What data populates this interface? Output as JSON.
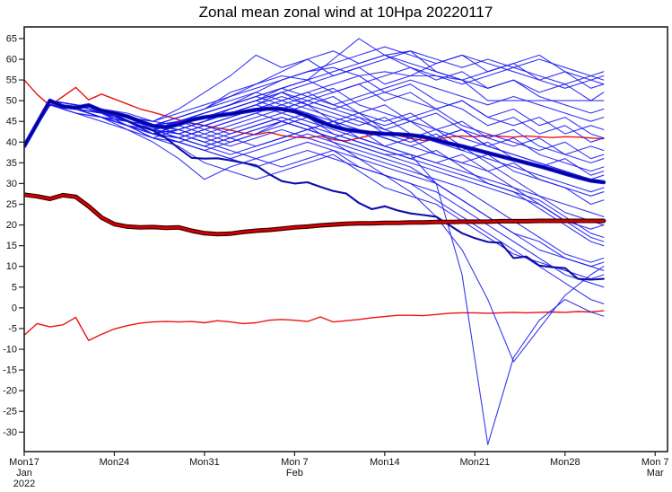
{
  "chart_data": {
    "type": "line",
    "title": "Zonal mean zonal wind at 10Hpa 20220117",
    "xlabel": "",
    "ylabel": "",
    "grid": false,
    "legend": "none",
    "x_axis": {
      "unit": "days since Mon 17 Jan 2022",
      "min": 0,
      "max": 49.96,
      "ticks": [
        {
          "day": 0,
          "lines": [
            "Mon17",
            "Jan",
            "2022"
          ]
        },
        {
          "day": 7,
          "lines": [
            "Mon24"
          ]
        },
        {
          "day": 14,
          "lines": [
            "Mon31"
          ]
        },
        {
          "day": 21,
          "lines": [
            "Mon 7",
            "Feb"
          ]
        },
        {
          "day": 28,
          "lines": [
            "Mon14"
          ]
        },
        {
          "day": 35,
          "lines": [
            "Mon21"
          ]
        },
        {
          "day": 42,
          "lines": [
            "Mon28"
          ]
        },
        {
          "day": 49,
          "lines": [
            "Mon 7",
            "Mar"
          ]
        }
      ]
    },
    "y_axis": {
      "min": -34.7,
      "max": 67.8,
      "tick_first": -30,
      "tick_last": 65,
      "tick_step": 5
    },
    "colors": {
      "member_blue": "#1a1af0",
      "mean_blue_edge": "#1414e6",
      "mean_blue_core": "#00008c",
      "control_blue": "#0d0da8",
      "red_thin": "#ee1111",
      "red_thick_core": "#d40000",
      "red_thick_edge": "#300000",
      "frame": "#222222"
    },
    "series": {
      "red_thin_upper": {
        "label": "thin red upper climatology line",
        "day_step": 1,
        "values": [
          55.0,
          51.5,
          48.8,
          51.0,
          53.2,
          50.2,
          51.6,
          50.4,
          49.2,
          48.0,
          47.2,
          46.3,
          45.4,
          44.6,
          44.0,
          43.4,
          42.9,
          42.2,
          41.8,
          42.4,
          41.6,
          41.2,
          41.0,
          41.5,
          40.6,
          40.3,
          41.0,
          41.7,
          42.3,
          41.6,
          40.9,
          40.4,
          40.7,
          41.2,
          41.5,
          41.3,
          41.6,
          41.4,
          41.2,
          41.5,
          41.3,
          41.1,
          41.3,
          41.2,
          41.0,
          40.8
        ]
      },
      "red_thick": {
        "label": "thick dark red climatology line",
        "day_step": 1,
        "values": [
          27.3,
          26.9,
          26.3,
          27.2,
          26.8,
          24.5,
          21.8,
          20.2,
          19.6,
          19.4,
          19.5,
          19.3,
          19.4,
          18.6,
          18.0,
          17.8,
          17.9,
          18.3,
          18.6,
          18.8,
          19.1,
          19.4,
          19.6,
          19.9,
          20.1,
          20.3,
          20.4,
          20.4,
          20.5,
          20.5,
          20.6,
          20.6,
          20.7,
          20.7,
          20.8,
          20.8,
          20.8,
          20.9,
          20.9,
          20.9,
          21.0,
          21.0,
          21.0,
          21.0,
          21.0,
          21.0
        ]
      },
      "red_thin_lower": {
        "label": "thin red lower climatology line",
        "day_step": 1,
        "values": [
          -6.6,
          -3.8,
          -4.6,
          -4.1,
          -2.3,
          -7.9,
          -6.4,
          -5.1,
          -4.3,
          -3.7,
          -3.4,
          -3.3,
          -3.4,
          -3.3,
          -3.6,
          -3.1,
          -3.4,
          -3.8,
          -3.6,
          -3.0,
          -2.8,
          -3.0,
          -3.3,
          -2.2,
          -3.4,
          -3.1,
          -2.8,
          -2.4,
          -2.1,
          -1.8,
          -1.8,
          -1.9,
          -1.6,
          -1.3,
          -1.2,
          -1.2,
          -1.3,
          -1.2,
          -1.1,
          -1.2,
          -1.1,
          -1.0,
          -1.1,
          -0.9,
          -1.0,
          -0.7
        ]
      },
      "blue_thick_mean": {
        "label": "thick blue forecast line",
        "day_step": 1,
        "values": [
          39.0,
          44.5,
          50.0,
          48.6,
          48.3,
          48.9,
          47.6,
          47.0,
          46.2,
          45.0,
          43.9,
          43.6,
          44.3,
          45.4,
          46.0,
          46.4,
          46.8,
          47.3,
          47.8,
          48.1,
          48.0,
          47.4,
          46.3,
          44.9,
          43.8,
          43.0,
          42.6,
          42.2,
          42.0,
          41.9,
          41.7,
          41.3,
          40.5,
          39.7,
          39.0,
          38.2,
          37.4,
          36.6,
          35.8,
          35.0,
          34.2,
          33.3,
          32.4,
          31.5,
          30.7,
          30.3
        ]
      },
      "blue_medium": {
        "label": "medium dark blue forecast line",
        "day_step": 1,
        "values": [
          39.0,
          44.5,
          49.8,
          48.4,
          48.0,
          48.6,
          47.2,
          46.5,
          45.2,
          43.8,
          42.8,
          41.0,
          38.5,
          36.2,
          36.0,
          36.1,
          35.6,
          35.0,
          34.4,
          32.3,
          30.6,
          30.0,
          30.3,
          29.2,
          28.2,
          27.6,
          25.3,
          23.8,
          24.5,
          23.5,
          22.8,
          22.4,
          22.0,
          20.0,
          18.0,
          16.8,
          15.9,
          15.7,
          12.0,
          12.4,
          10.2,
          9.8,
          9.6,
          7.0,
          6.8,
          7.0
        ]
      },
      "member_days": [
        0,
        2,
        4,
        6,
        8,
        10,
        12,
        14,
        16,
        18,
        20,
        22,
        24,
        26,
        28,
        30,
        32,
        34,
        36,
        38,
        40,
        42,
        44,
        45
      ],
      "members": [
        [
          39,
          50,
          48,
          47,
          45,
          43,
          45,
          47,
          49,
          52,
          55,
          57,
          58,
          56,
          57,
          56,
          56,
          55,
          50,
          50,
          50,
          50,
          50,
          50
        ],
        [
          39,
          50,
          49,
          48,
          46,
          44,
          46,
          48,
          51,
          54,
          57,
          60,
          62,
          59,
          61,
          58,
          55,
          57,
          53,
          55,
          52,
          54,
          50,
          52
        ],
        [
          39,
          50,
          48,
          46,
          44,
          42,
          43,
          45,
          48,
          50,
          53,
          55,
          52,
          54,
          50,
          52,
          48,
          50,
          46,
          44,
          46,
          42,
          44,
          43
        ],
        [
          39,
          49,
          48,
          47,
          45,
          42,
          44,
          46,
          47,
          49,
          52,
          49,
          51,
          47,
          49,
          45,
          47,
          43,
          41,
          39,
          41,
          37,
          39,
          38
        ],
        [
          39,
          50,
          49,
          47,
          46,
          44,
          45,
          44,
          46,
          48,
          50,
          52,
          49,
          47,
          45,
          47,
          43,
          45,
          41,
          43,
          39,
          37,
          35,
          36
        ],
        [
          39,
          50,
          48,
          47,
          44,
          41,
          40,
          38,
          40,
          42,
          45,
          47,
          44,
          46,
          42,
          40,
          42,
          38,
          36,
          34,
          32,
          30,
          28,
          29
        ],
        [
          39,
          49,
          47,
          46,
          44,
          42,
          41,
          39,
          37,
          39,
          41,
          43,
          45,
          41,
          39,
          37,
          35,
          33,
          31,
          29,
          27,
          25,
          23,
          22
        ],
        [
          39,
          50,
          49,
          48,
          46,
          43,
          42,
          40,
          42,
          44,
          46,
          44,
          42,
          40,
          38,
          36,
          34,
          32,
          30,
          28,
          26,
          22,
          18,
          17
        ],
        [
          39,
          50,
          48,
          46,
          43,
          40,
          36,
          31,
          34,
          36,
          38,
          40,
          38,
          36,
          34,
          32,
          30,
          26,
          22,
          18,
          14,
          12,
          10,
          9
        ],
        [
          39,
          49,
          48,
          46,
          44,
          41,
          39,
          35,
          33,
          31,
          33,
          35,
          37,
          33,
          29,
          27,
          25,
          21,
          17,
          13,
          11,
          9,
          7,
          8
        ],
        [
          39,
          50,
          49,
          47,
          45,
          42,
          40,
          42,
          44,
          46,
          48,
          50,
          52,
          54,
          56,
          58,
          56,
          54,
          56,
          58,
          56,
          54,
          56,
          55
        ],
        [
          39,
          50,
          48,
          47,
          45,
          43,
          44,
          46,
          48,
          50,
          52,
          54,
          56,
          58,
          60,
          62,
          60,
          58,
          60,
          58,
          60,
          58,
          56,
          57
        ],
        [
          39,
          50,
          49,
          48,
          47,
          45,
          48,
          52,
          56,
          61,
          58,
          60,
          56,
          58,
          54,
          56,
          59,
          61,
          59,
          57,
          55,
          57,
          53,
          54
        ],
        [
          39,
          49,
          48,
          46,
          45,
          43,
          45,
          47,
          49,
          51,
          53,
          51,
          49,
          51,
          53,
          55,
          53,
          51,
          49,
          51,
          49,
          47,
          45,
          46
        ],
        [
          39,
          50,
          48,
          46,
          44,
          42,
          44,
          46,
          48,
          50,
          48,
          50,
          48,
          46,
          44,
          46,
          48,
          44,
          42,
          40,
          38,
          40,
          36,
          37
        ],
        [
          39,
          50,
          49,
          47,
          45,
          44,
          46,
          48,
          50,
          52,
          50,
          48,
          46,
          44,
          46,
          42,
          40,
          38,
          40,
          36,
          34,
          36,
          32,
          33
        ],
        [
          39,
          49,
          47,
          45,
          43,
          41,
          43,
          45,
          47,
          49,
          47,
          45,
          43,
          41,
          39,
          41,
          37,
          35,
          33,
          35,
          31,
          29,
          27,
          28
        ],
        [
          39,
          50,
          48,
          47,
          46,
          44,
          43,
          41,
          43,
          45,
          47,
          49,
          45,
          43,
          41,
          39,
          37,
          35,
          37,
          33,
          31,
          29,
          25,
          26
        ],
        [
          39,
          50,
          49,
          48,
          45,
          42,
          41,
          43,
          45,
          47,
          49,
          51,
          53,
          49,
          47,
          45,
          43,
          41,
          39,
          37,
          35,
          33,
          31,
          30
        ],
        [
          39,
          49,
          48,
          47,
          45,
          43,
          42,
          44,
          46,
          48,
          50,
          52,
          54,
          56,
          52,
          50,
          48,
          50,
          46,
          48,
          44,
          46,
          42,
          41
        ],
        [
          39,
          50,
          48,
          46,
          45,
          43,
          45,
          47,
          49,
          51,
          53,
          55,
          57,
          59,
          61,
          59,
          57,
          55,
          57,
          59,
          55,
          53,
          55,
          54
        ],
        [
          39,
          50,
          49,
          47,
          46,
          45,
          47,
          49,
          51,
          53,
          55,
          57,
          59,
          61,
          63,
          61,
          59,
          61,
          57,
          59,
          61,
          57,
          55,
          56
        ],
        [
          39,
          50,
          48,
          47,
          45,
          44,
          46,
          48,
          52,
          54,
          56,
          55,
          60,
          65,
          61,
          62,
          57,
          55,
          53,
          55,
          51,
          49,
          47,
          48
        ],
        [
          39,
          49,
          48,
          46,
          44,
          43,
          45,
          47,
          49,
          51,
          49,
          47,
          45,
          43,
          41,
          39,
          41,
          43,
          39,
          37,
          35,
          33,
          31,
          32
        ],
        [
          39,
          50,
          49,
          47,
          45,
          43,
          41,
          39,
          41,
          43,
          45,
          43,
          41,
          39,
          37,
          35,
          33,
          31,
          29,
          27,
          25,
          21,
          19,
          20
        ],
        [
          39,
          50,
          48,
          46,
          44,
          42,
          40,
          38,
          36,
          38,
          40,
          42,
          40,
          38,
          36,
          34,
          30,
          26,
          22,
          18,
          16,
          12,
          10,
          11
        ],
        [
          39,
          49,
          48,
          47,
          45,
          42,
          40,
          38,
          36,
          34,
          36,
          38,
          36,
          34,
          32,
          30,
          28,
          24,
          20,
          16,
          12,
          8,
          6,
          5
        ],
        [
          39,
          50,
          49,
          48,
          46,
          44,
          42,
          40,
          38,
          36,
          34,
          36,
          38,
          34,
          32,
          30,
          26,
          22,
          18,
          14,
          10,
          6,
          2,
          1
        ],
        [
          39,
          50,
          48,
          46,
          45,
          43,
          41,
          43,
          45,
          47,
          45,
          43,
          41,
          43,
          39,
          37,
          35,
          37,
          33,
          29,
          25,
          21,
          17,
          16
        ],
        [
          39,
          49,
          47,
          46,
          44,
          42,
          44,
          42,
          40,
          42,
          44,
          46,
          42,
          40,
          38,
          36,
          38,
          34,
          30,
          28,
          24,
          20,
          16,
          15
        ],
        [
          39,
          50,
          49,
          47,
          46,
          44,
          43,
          45,
          47,
          49,
          51,
          49,
          47,
          45,
          43,
          41,
          43,
          39,
          35,
          31,
          27,
          23,
          21,
          20
        ],
        [
          39,
          50,
          48,
          47,
          44,
          42,
          43,
          41,
          39,
          41,
          43,
          41,
          39,
          37,
          35,
          33,
          31,
          29,
          25,
          21,
          17,
          13,
          11,
          12
        ],
        [
          39,
          50,
          48,
          46,
          44,
          42,
          41,
          39,
          41,
          43,
          45,
          43,
          41,
          39,
          37,
          37,
          30,
          8,
          -33,
          -12,
          -3,
          2,
          -1,
          -2
        ],
        [
          39,
          49,
          48,
          46,
          45,
          43,
          42,
          44,
          42,
          44,
          46,
          44,
          40,
          36,
          32,
          28,
          22,
          14,
          2,
          -13,
          -5,
          3,
          8,
          10
        ],
        [
          39,
          50,
          49,
          48,
          46,
          45,
          44,
          46,
          48,
          50,
          52,
          50,
          48,
          50,
          52,
          54,
          50,
          48,
          44,
          46,
          42,
          44,
          40,
          41
        ],
        [
          39,
          49,
          48,
          47,
          46,
          44,
          45,
          43,
          41,
          39,
          41,
          43,
          45,
          47,
          43,
          45,
          41,
          43,
          39,
          41,
          37,
          35,
          33,
          34
        ]
      ]
    }
  }
}
